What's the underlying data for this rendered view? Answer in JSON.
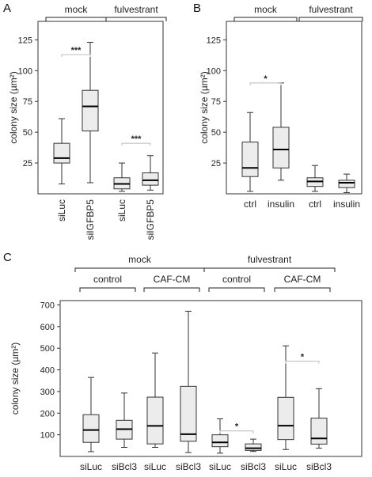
{
  "panel_letters": {
    "a": "A",
    "b": "B",
    "c": "C"
  },
  "colors": {
    "box_fill": "#ececec",
    "line": "#333333",
    "bracket": "#222222",
    "sig_line": "#bbbbbb"
  },
  "chart_data": [
    {
      "panel": "A",
      "type": "box",
      "ylabel": "colony size (µm²)",
      "ylim": [
        0,
        140
      ],
      "yticks": [
        25,
        50,
        75,
        100,
        125
      ],
      "grid": false,
      "groups": [
        {
          "label": "mock",
          "categories": [
            0,
            1
          ]
        },
        {
          "label": "fulvestrant",
          "categories": [
            2,
            3
          ]
        }
      ],
      "categories": [
        "siLuc",
        "siIGFBP5",
        "siLuc",
        "siIGFBP5"
      ],
      "boxes": [
        {
          "min": 8,
          "q1": 25,
          "median": 29,
          "q3": 41,
          "max": 61
        },
        {
          "min": 9,
          "q1": 51,
          "median": 71,
          "q3": 84,
          "max": 123
        },
        {
          "min": 2,
          "q1": 4,
          "median": 8,
          "q3": 13,
          "max": 25
        },
        {
          "min": 3,
          "q1": 7,
          "median": 11,
          "q3": 17,
          "max": 31
        }
      ],
      "annotations": [
        {
          "text": "***",
          "between": [
            0,
            1
          ],
          "y": 113
        },
        {
          "text": "***",
          "between": [
            2,
            3
          ],
          "y": 41
        }
      ]
    },
    {
      "panel": "B",
      "type": "box",
      "ylabel": "colony size (µm²)",
      "ylim": [
        0,
        140
      ],
      "yticks": [
        25,
        50,
        75,
        100,
        125
      ],
      "grid": false,
      "groups": [
        {
          "label": "mock",
          "categories": [
            0,
            1
          ]
        },
        {
          "label": "fulvestrant",
          "categories": [
            2,
            3
          ]
        }
      ],
      "categories": [
        "ctrl",
        "insulin",
        "ctrl",
        "insulin"
      ],
      "boxes": [
        {
          "min": 2,
          "q1": 14,
          "median": 21,
          "q3": 42,
          "max": 66
        },
        {
          "min": 11,
          "q1": 21,
          "median": 36,
          "q3": 54,
          "max": 90
        },
        {
          "min": 2,
          "q1": 6,
          "median": 10,
          "q3": 13,
          "max": 23
        },
        {
          "min": 1,
          "q1": 5,
          "median": 9,
          "q3": 11,
          "max": 16
        }
      ],
      "annotations": [
        {
          "text": "*",
          "between": [
            0,
            1
          ],
          "y": 90
        }
      ]
    },
    {
      "panel": "C",
      "type": "box",
      "ylabel": "colony size (µm²)",
      "ylim": [
        0,
        720
      ],
      "yticks": [
        100,
        200,
        300,
        400,
        500,
        600,
        700
      ],
      "grid": false,
      "groups": [
        {
          "label": "mock",
          "categories": [
            0,
            1,
            2,
            3
          ]
        },
        {
          "label": "fulvestrant",
          "categories": [
            4,
            5,
            6,
            7
          ]
        }
      ],
      "subgroups": [
        {
          "label": "control",
          "categories": [
            0,
            1
          ]
        },
        {
          "label": "CAF-CM",
          "categories": [
            2,
            3
          ]
        },
        {
          "label": "control",
          "categories": [
            4,
            5
          ]
        },
        {
          "label": "CAF-CM",
          "categories": [
            6,
            7
          ]
        }
      ],
      "categories": [
        "siLuc",
        "siBcl3",
        "siLuc",
        "siBcl3",
        "siLuc",
        "siBcl3",
        "siLuc",
        "siBcl3"
      ],
      "boxes": [
        {
          "min": 22,
          "q1": 65,
          "median": 122,
          "q3": 193,
          "max": 365
        },
        {
          "min": 42,
          "q1": 80,
          "median": 126,
          "q3": 167,
          "max": 293
        },
        {
          "min": 42,
          "q1": 58,
          "median": 141,
          "q3": 274,
          "max": 478
        },
        {
          "min": 18,
          "q1": 70,
          "median": 103,
          "q3": 324,
          "max": 671
        },
        {
          "min": 15,
          "q1": 45,
          "median": 65,
          "q3": 100,
          "max": 174
        },
        {
          "min": 23,
          "q1": 28,
          "median": 38,
          "q3": 58,
          "max": 80
        },
        {
          "min": 32,
          "q1": 78,
          "median": 142,
          "q3": 273,
          "max": 511
        },
        {
          "min": 38,
          "q1": 57,
          "median": 83,
          "q3": 177,
          "max": 313
        }
      ],
      "annotations": [
        {
          "text": "*",
          "between": [
            4,
            5
          ],
          "y": 118
        },
        {
          "text": "*",
          "between": [
            6,
            7
          ],
          "y": 440
        }
      ]
    }
  ]
}
